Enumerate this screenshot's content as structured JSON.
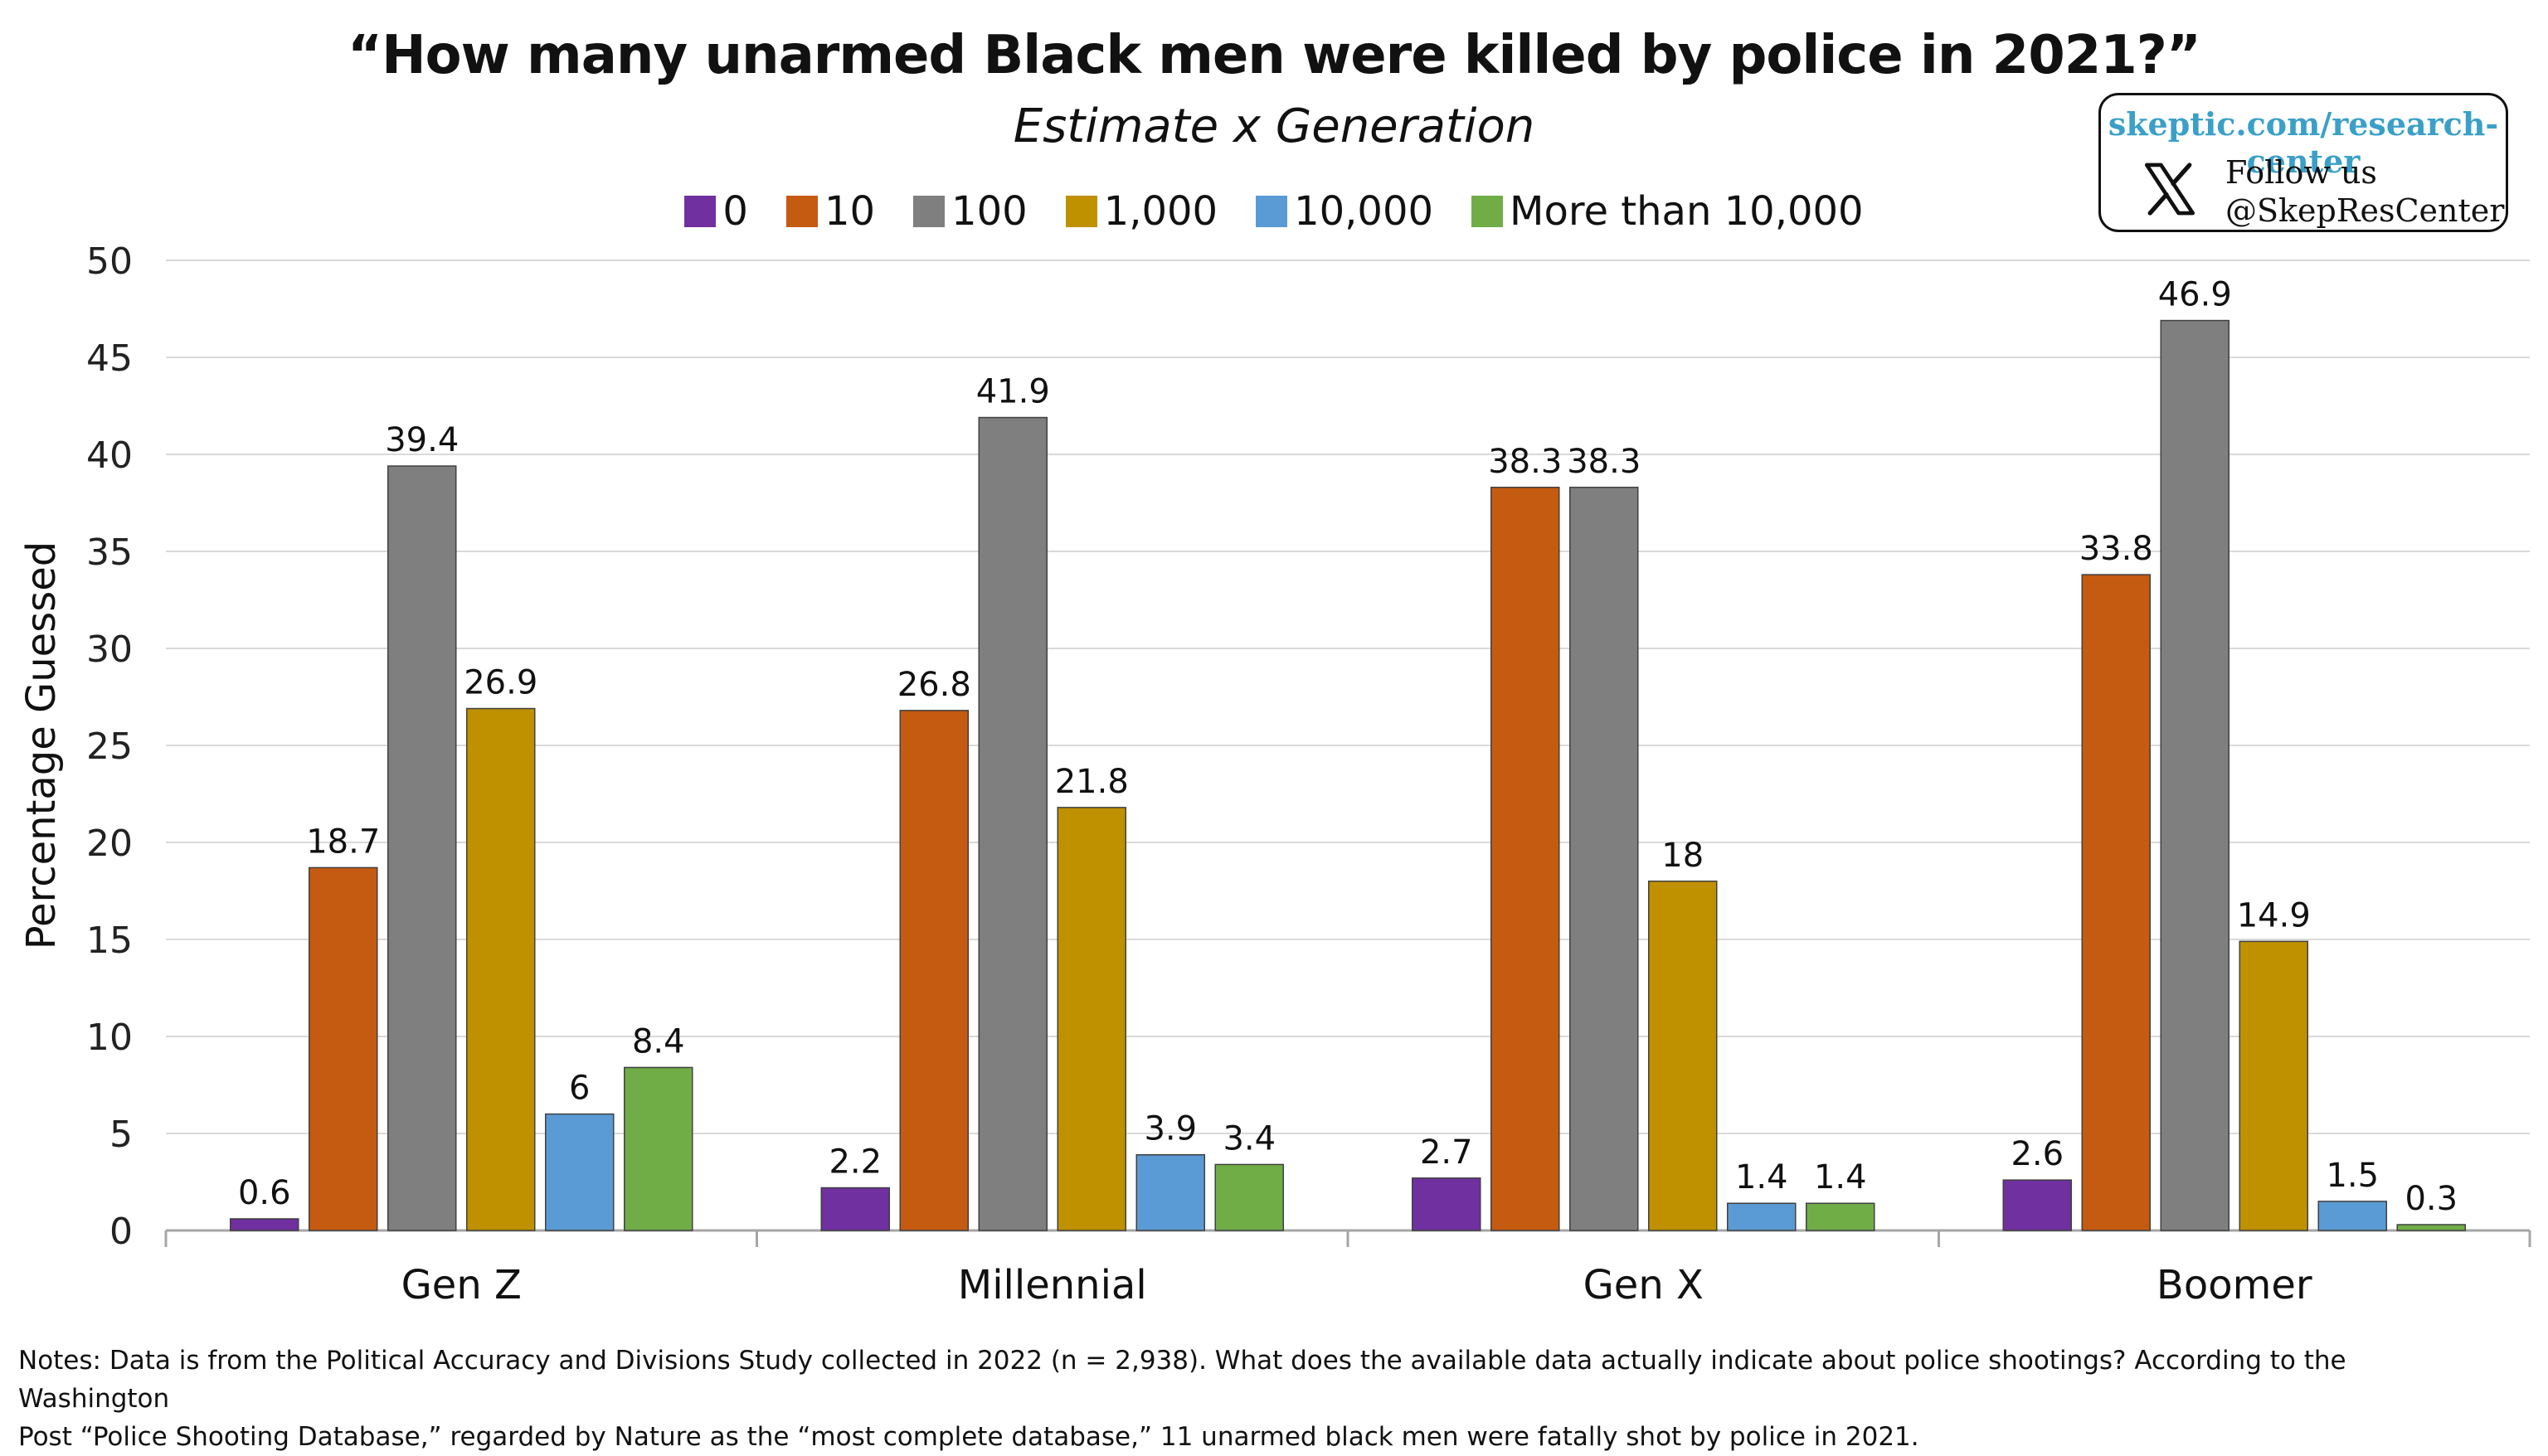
{
  "title": "“How many unarmed Black men were killed by police in 2021?”",
  "subtitle": "Estimate x Generation",
  "promo": {
    "url": "skeptic.com/research-center",
    "follow": "Follow us",
    "handle": "@SkepResCenter",
    "icon": "x-logo-icon"
  },
  "notes_line1": "Notes: Data is from the Political Accuracy and Divisions Study collected in 2022 (n = 2,938). What does the available data actually indicate about police shootings? According to the Washington",
  "notes_line2": "Post “Police Shooting Database,” regarded by Nature as the “most complete database,” 11 unarmed black men were fatally shot by police in 2021.",
  "chart_data": {
    "type": "bar",
    "title": "“How many unarmed Black men were killed by police in 2021?”",
    "subtitle": "Estimate x Generation",
    "xlabel": "",
    "ylabel": "Percentage Guessed",
    "ylim": [
      0,
      50
    ],
    "yticks": [
      0,
      5,
      10,
      15,
      20,
      25,
      30,
      35,
      40,
      45,
      50
    ],
    "grid": true,
    "legend_position": "top",
    "categories": [
      "Gen Z",
      "Millennial",
      "Gen X",
      "Boomer"
    ],
    "series": [
      {
        "name": "0",
        "color": "#7030a0",
        "values": [
          0.6,
          2.2,
          2.7,
          2.6
        ]
      },
      {
        "name": "10",
        "color": "#c55a11",
        "values": [
          18.7,
          26.8,
          38.3,
          33.8
        ]
      },
      {
        "name": "100",
        "color": "#7f7f7f",
        "values": [
          39.4,
          41.9,
          38.3,
          46.9
        ]
      },
      {
        "name": "1,000",
        "color": "#bf9000",
        "values": [
          26.9,
          21.8,
          18,
          14.9
        ]
      },
      {
        "name": "10,000",
        "color": "#5b9bd5",
        "values": [
          6,
          3.9,
          1.4,
          1.5
        ]
      },
      {
        "name": "More than 10,000",
        "color": "#70ad47",
        "values": [
          8.4,
          3.4,
          1.4,
          0.3
        ]
      }
    ]
  }
}
